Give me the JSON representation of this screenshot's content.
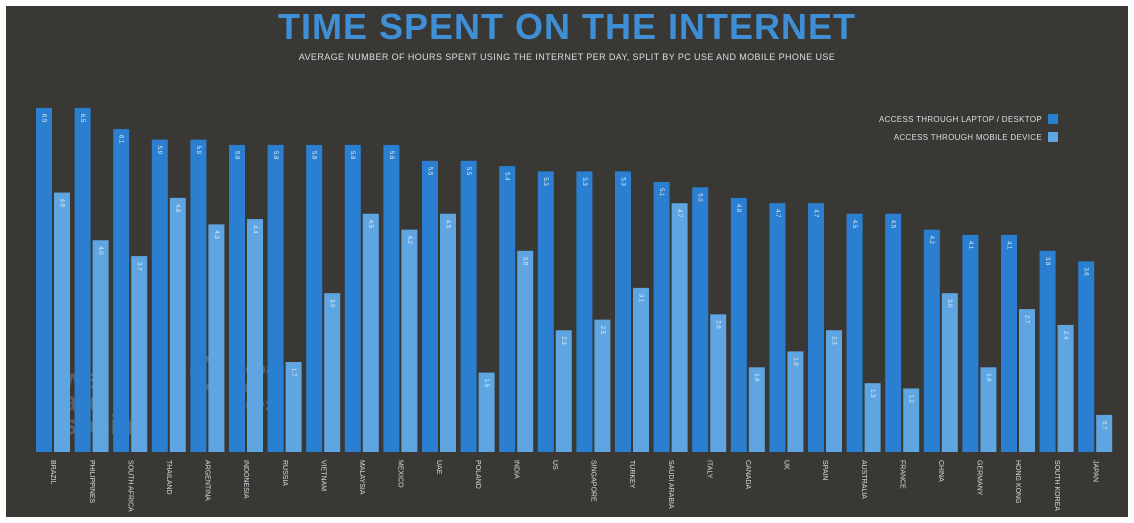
{
  "chart_data": {
    "type": "bar",
    "title": "TIME SPENT ON THE INTERNET",
    "subtitle": "AVERAGE NUMBER OF HOURS SPENT USING THE INTERNET PER DAY, SPLIT BY PC USE AND MOBILE PHONE USE",
    "categories": [
      "BRAZIL",
      "PHILIPPINES",
      "SOUTH AFRICA",
      "THAILAND",
      "ARGENTINA",
      "INDONESIA",
      "RUSSIA",
      "VIETNAM",
      "MALAYSIA",
      "MEXICO",
      "UAE",
      "POLAND",
      "INDIA",
      "US",
      "SINGAPORE",
      "TURKEY",
      "SAUDI ARABIA",
      "ITALY",
      "CANADA",
      "UK",
      "SPAIN",
      "AUSTRALIA",
      "FRANCE",
      "CHINA",
      "GERMANY",
      "HONG KONG",
      "SOUTH KOREA",
      "JAPAN"
    ],
    "series": [
      {
        "name": "ACCESS THROUGH LAPTOP / DESKTOP",
        "color": "#2a7fd0",
        "values": [
          6.5,
          6.5,
          6.1,
          5.9,
          5.9,
          5.8,
          5.8,
          5.8,
          5.8,
          5.8,
          5.5,
          5.5,
          5.4,
          5.3,
          5.3,
          5.3,
          5.1,
          5.0,
          4.8,
          4.7,
          4.7,
          4.5,
          4.5,
          4.2,
          4.1,
          4.1,
          3.8,
          3.6
        ]
      },
      {
        "name": "ACCESS THROUGH MOBILE DEVICE",
        "color": "#5fa5e2",
        "values": [
          4.9,
          4.0,
          3.7,
          4.8,
          4.3,
          4.4,
          1.7,
          3.0,
          4.5,
          4.2,
          4.5,
          1.5,
          3.8,
          2.3,
          2.5,
          3.1,
          4.7,
          2.6,
          1.6,
          1.9,
          2.3,
          1.3,
          1.2,
          3.0,
          1.6,
          2.7,
          2.4,
          0.7
        ]
      }
    ],
    "ylim": [
      0,
      6.8
    ],
    "grid": false,
    "legend": "top-right"
  },
  "watermark": {
    "left": [
      "we",
      "are",
      "social"
    ],
    "right": [
      "global",
      "web",
      "index"
    ]
  }
}
